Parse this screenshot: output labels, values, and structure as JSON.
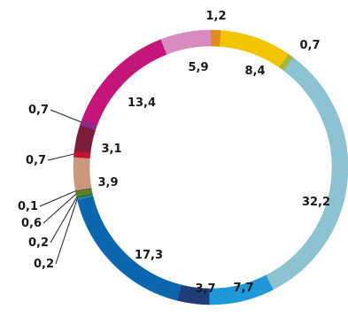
{
  "chart_data": {
    "type": "pie",
    "style": "donut",
    "title": "",
    "slices": [
      {
        "label": "1,2",
        "value": 1.2,
        "color": "#E08A1E"
      },
      {
        "label": "8,4",
        "value": 8.4,
        "color": "#F2C500"
      },
      {
        "label": "0,7",
        "value": 0.7,
        "color": "#A8B43C"
      },
      {
        "label": "32,2",
        "value": 32.2,
        "color": "#8DC3D1"
      },
      {
        "label": "7,7",
        "value": 7.7,
        "color": "#1E98D8"
      },
      {
        "label": "3,7",
        "value": 3.7,
        "color": "#1F3E78"
      },
      {
        "label": "17,3",
        "value": 17.3,
        "color": "#0A66AE"
      },
      {
        "label": "0,2",
        "value": 0.2,
        "color": "#2F8A9E"
      },
      {
        "label": "0,2",
        "value": 0.2,
        "color": "#2E6E3E"
      },
      {
        "label": "0,6",
        "value": 0.6,
        "color": "#5E7F2A"
      },
      {
        "label": "0,1",
        "value": 0.1,
        "color": "#3E5E2A"
      },
      {
        "label": "3,9",
        "value": 3.9,
        "color": "#C9987E"
      },
      {
        "label": "0,7",
        "value": 0.7,
        "color": "#C8102E"
      },
      {
        "label": "3,1",
        "value": 3.1,
        "color": "#7A1E3A"
      },
      {
        "label": "0,7",
        "value": 0.7,
        "color": "#8E2A8E"
      },
      {
        "label": "13,4",
        "value": 13.4,
        "color": "#C4157A"
      },
      {
        "label": "5,9",
        "value": 5.9,
        "color": "#D98BC0"
      }
    ]
  }
}
